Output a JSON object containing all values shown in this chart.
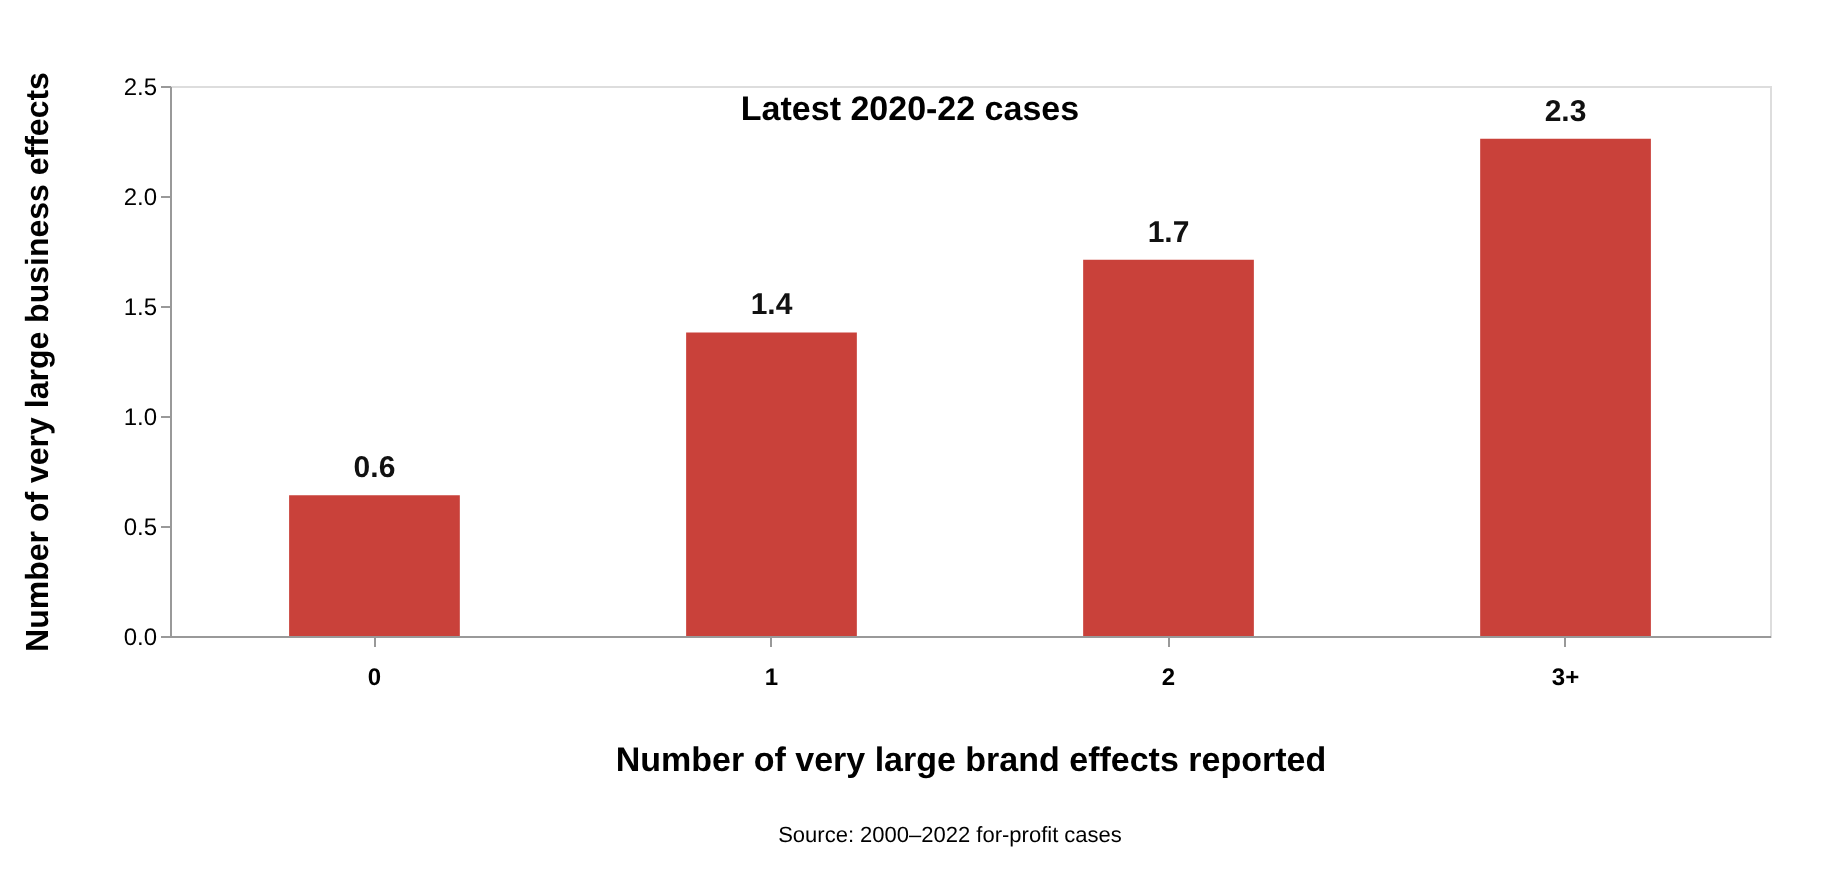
{
  "chart_data": {
    "type": "bar",
    "title": "Latest 2020-22 cases",
    "xlabel": "Number of very large brand effects reported",
    "ylabel": "Number of very large business effects",
    "categories": [
      "0",
      "1",
      "2",
      "3+"
    ],
    "values": [
      0.64,
      1.38,
      1.71,
      2.26
    ],
    "value_labels": [
      "0.6",
      "1.4",
      "1.7",
      "2.3"
    ],
    "color": "#c9413a",
    "ylim": [
      0,
      2.5
    ],
    "yticks": [
      {
        "value": 0,
        "label": "0.0"
      },
      {
        "value": 0.5,
        "label": "0.5"
      },
      {
        "value": 1,
        "label": "1.0"
      },
      {
        "value": 1.5,
        "label": "1.5"
      },
      {
        "value": 2,
        "label": "2.0"
      },
      {
        "value": 2.5,
        "label": "2.5"
      }
    ],
    "grid": false,
    "annotations": [
      "Source: 2000–2022 for-profit cases"
    ]
  }
}
